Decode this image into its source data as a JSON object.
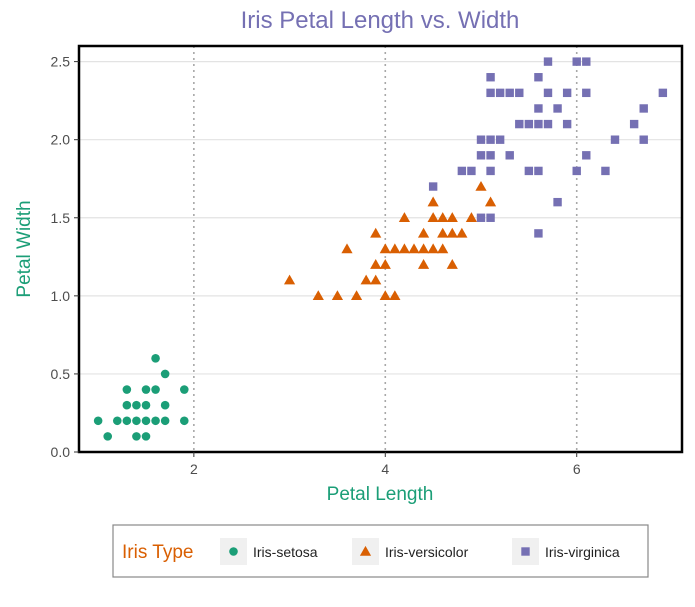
{
  "chart_data": {
    "type": "scatter",
    "title": "Iris Petal Length vs. Width",
    "xlabel": "Petal Length",
    "ylabel": "Petal Width",
    "xlim": [
      0.8,
      7.1
    ],
    "ylim": [
      0,
      2.6
    ],
    "x_ticks": [
      2,
      4,
      6
    ],
    "x_tick_labels": [
      "2",
      "4",
      "6"
    ],
    "y_ticks": [
      0,
      0.5,
      1,
      1.5,
      2,
      2.5
    ],
    "y_tick_labels": [
      "0.0",
      "0.5",
      "1.0",
      "1.5",
      "2.0",
      "2.5"
    ],
    "grid": "horizontal gridlines; dotted vertical lines at x = 2, 4, 6",
    "legend": {
      "title": "Iris Type",
      "position": "bottom"
    },
    "colors": {
      "title": "#7570b3",
      "xlabel": "#1b9e77",
      "ylabel": "#1b9e77",
      "legend_title": "#d95f02"
    },
    "series": [
      {
        "name": "Iris-setosa",
        "marker": "circle",
        "color": "#1b9e77",
        "points": [
          [
            1.0,
            0.2
          ],
          [
            1.1,
            0.1
          ],
          [
            1.2,
            0.2
          ],
          [
            1.3,
            0.2
          ],
          [
            1.3,
            0.3
          ],
          [
            1.3,
            0.4
          ],
          [
            1.4,
            0.1
          ],
          [
            1.4,
            0.2
          ],
          [
            1.4,
            0.3
          ],
          [
            1.5,
            0.1
          ],
          [
            1.5,
            0.2
          ],
          [
            1.5,
            0.3
          ],
          [
            1.5,
            0.4
          ],
          [
            1.6,
            0.2
          ],
          [
            1.6,
            0.4
          ],
          [
            1.6,
            0.6
          ],
          [
            1.7,
            0.2
          ],
          [
            1.7,
            0.3
          ],
          [
            1.7,
            0.5
          ],
          [
            1.9,
            0.2
          ],
          [
            1.9,
            0.4
          ]
        ]
      },
      {
        "name": "Iris-versicolor",
        "marker": "triangle",
        "color": "#d95f02",
        "points": [
          [
            3.0,
            1.1
          ],
          [
            3.3,
            1.0
          ],
          [
            3.5,
            1.0
          ],
          [
            3.6,
            1.3
          ],
          [
            3.7,
            1.0
          ],
          [
            3.8,
            1.1
          ],
          [
            3.9,
            1.1
          ],
          [
            3.9,
            1.2
          ],
          [
            3.9,
            1.4
          ],
          [
            4.0,
            1.0
          ],
          [
            4.0,
            1.2
          ],
          [
            4.0,
            1.3
          ],
          [
            4.1,
            1.0
          ],
          [
            4.1,
            1.3
          ],
          [
            4.2,
            1.3
          ],
          [
            4.2,
            1.5
          ],
          [
            4.3,
            1.3
          ],
          [
            4.4,
            1.2
          ],
          [
            4.4,
            1.3
          ],
          [
            4.4,
            1.4
          ],
          [
            4.5,
            1.3
          ],
          [
            4.5,
            1.5
          ],
          [
            4.5,
            1.6
          ],
          [
            4.6,
            1.3
          ],
          [
            4.6,
            1.4
          ],
          [
            4.6,
            1.5
          ],
          [
            4.7,
            1.2
          ],
          [
            4.7,
            1.4
          ],
          [
            4.7,
            1.5
          ],
          [
            4.8,
            1.4
          ],
          [
            4.9,
            1.5
          ],
          [
            5.0,
            1.7
          ],
          [
            5.1,
            1.6
          ]
        ]
      },
      {
        "name": "Iris-virginica",
        "marker": "square",
        "color": "#7570b3",
        "points": [
          [
            4.5,
            1.7
          ],
          [
            4.8,
            1.8
          ],
          [
            4.9,
            1.8
          ],
          [
            5.0,
            2.0
          ],
          [
            5.0,
            1.9
          ],
          [
            5.0,
            1.5
          ],
          [
            5.1,
            1.5
          ],
          [
            5.1,
            1.8
          ],
          [
            5.1,
            1.9
          ],
          [
            5.1,
            2.0
          ],
          [
            5.1,
            2.3
          ],
          [
            5.1,
            2.4
          ],
          [
            5.2,
            2.0
          ],
          [
            5.2,
            2.3
          ],
          [
            5.3,
            1.9
          ],
          [
            5.3,
            2.3
          ],
          [
            5.4,
            2.1
          ],
          [
            5.4,
            2.3
          ],
          [
            5.5,
            1.8
          ],
          [
            5.5,
            2.1
          ],
          [
            5.6,
            1.4
          ],
          [
            5.6,
            1.8
          ],
          [
            5.6,
            2.1
          ],
          [
            5.6,
            2.2
          ],
          [
            5.6,
            2.4
          ],
          [
            5.7,
            2.1
          ],
          [
            5.7,
            2.3
          ],
          [
            5.7,
            2.5
          ],
          [
            5.8,
            1.6
          ],
          [
            5.8,
            2.2
          ],
          [
            5.9,
            2.1
          ],
          [
            5.9,
            2.3
          ],
          [
            6.0,
            1.8
          ],
          [
            6.0,
            2.5
          ],
          [
            6.1,
            1.9
          ],
          [
            6.1,
            2.3
          ],
          [
            6.1,
            2.5
          ],
          [
            6.3,
            1.8
          ],
          [
            6.4,
            2.0
          ],
          [
            6.6,
            2.1
          ],
          [
            6.7,
            2.0
          ],
          [
            6.7,
            2.2
          ],
          [
            6.9,
            2.3
          ]
        ]
      }
    ]
  }
}
